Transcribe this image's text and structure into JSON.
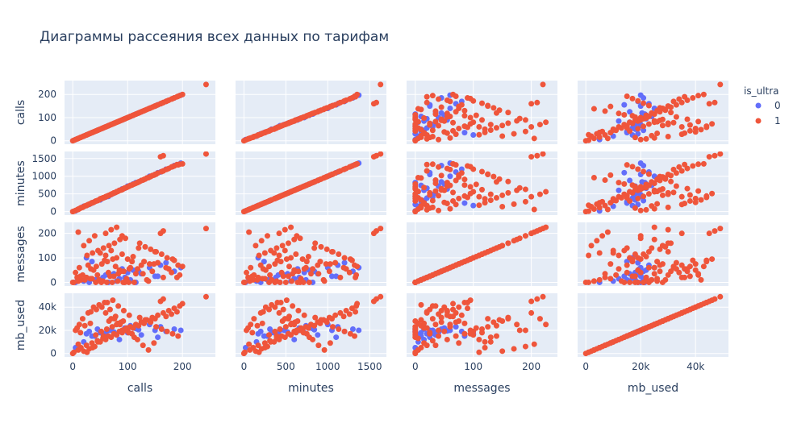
{
  "chart_data": {
    "type": "scatter",
    "subtype": "scatter_matrix",
    "title": "Диаграммы рассеяния всех данных по тарифам",
    "dimensions": [
      "calls",
      "minutes",
      "messages",
      "mb_used"
    ],
    "axes": {
      "calls": {
        "range": [
          -15,
          260
        ],
        "ticks": [
          0,
          100,
          200
        ],
        "tick_labels": [
          "0",
          "100",
          "200"
        ]
      },
      "minutes": {
        "range": [
          -100,
          1700
        ],
        "ticks": [
          0,
          500,
          1000,
          1500
        ],
        "tick_labels": [
          "0",
          "500",
          "1000",
          "1500"
        ]
      },
      "messages": {
        "range": [
          -15,
          245
        ],
        "ticks": [
          0,
          100,
          200
        ],
        "tick_labels": [
          "0",
          "100",
          "200"
        ]
      },
      "mb_used": {
        "range": [
          -3000,
          52000
        ],
        "ticks": [
          0,
          20000,
          40000
        ],
        "tick_labels": [
          "0",
          "20k",
          "40k"
        ]
      }
    },
    "legend": {
      "title": "is_ultra",
      "placement": "top-right",
      "entries": [
        {
          "name": "0",
          "color": "#636efa"
        },
        {
          "name": "1",
          "color": "#ef553b"
        }
      ]
    },
    "grid": true,
    "background_color": "#e5ecf6",
    "series": [
      {
        "name": "0",
        "color": "#636efa",
        "points": [
          [
            5,
            20,
            0,
            5000
          ],
          [
            20,
            150,
            5,
            10000
          ],
          [
            40,
            280,
            10,
            15000
          ],
          [
            55,
            380,
            20,
            17000
          ],
          [
            70,
            480,
            30,
            20000
          ],
          [
            85,
            600,
            15,
            12000
          ],
          [
            100,
            720,
            40,
            18000
          ],
          [
            110,
            780,
            50,
            22000
          ],
          [
            125,
            880,
            35,
            16000
          ],
          [
            140,
            1000,
            60,
            25000
          ],
          [
            155,
            1100,
            25,
            14000
          ],
          [
            170,
            1200,
            80,
            19000
          ],
          [
            185,
            1300,
            45,
            21000
          ],
          [
            197,
            1370,
            60,
            20000
          ],
          [
            50,
            330,
            10,
            18000
          ],
          [
            65,
            430,
            0,
            20000
          ],
          [
            80,
            560,
            5,
            16000
          ],
          [
            95,
            660,
            20,
            22000
          ],
          [
            30,
            200,
            0,
            19000
          ],
          [
            60,
            410,
            30,
            17500
          ],
          [
            90,
            640,
            55,
            19500
          ],
          [
            120,
            840,
            45,
            20500
          ],
          [
            45,
            310,
            15,
            21000
          ],
          [
            75,
            520,
            35,
            18500
          ],
          [
            150,
            1050,
            25,
            20000
          ],
          [
            160,
            1120,
            70,
            23000
          ],
          [
            35,
            240,
            85,
            15000
          ],
          [
            25,
            170,
            100,
            17000
          ],
          [
            105,
            740,
            10,
            24000
          ],
          [
            115,
            820,
            0,
            21500
          ]
        ]
      },
      {
        "name": "1",
        "color": "#ef553b",
        "points": [
          [
            0,
            0,
            0,
            0
          ],
          [
            2,
            10,
            0,
            1000
          ],
          [
            10,
            70,
            5,
            3000
          ],
          [
            15,
            110,
            10,
            5000
          ],
          [
            25,
            170,
            20,
            7000
          ],
          [
            35,
            250,
            15,
            9000
          ],
          [
            45,
            310,
            30,
            11000
          ],
          [
            55,
            390,
            5,
            13000
          ],
          [
            65,
            450,
            40,
            15000
          ],
          [
            75,
            530,
            25,
            17000
          ],
          [
            85,
            600,
            50,
            19000
          ],
          [
            95,
            670,
            0,
            21000
          ],
          [
            105,
            740,
            60,
            23000
          ],
          [
            115,
            800,
            35,
            25000
          ],
          [
            125,
            880,
            70,
            27000
          ],
          [
            135,
            950,
            10,
            29000
          ],
          [
            145,
            1020,
            45,
            31000
          ],
          [
            155,
            1090,
            80,
            33000
          ],
          [
            165,
            1150,
            20,
            35000
          ],
          [
            175,
            1220,
            55,
            37000
          ],
          [
            185,
            1290,
            90,
            39000
          ],
          [
            195,
            1340,
            30,
            41000
          ],
          [
            200,
            1350,
            65,
            43000
          ],
          [
            160,
            1550,
            200,
            45000
          ],
          [
            165,
            1580,
            210,
            47000
          ],
          [
            243,
            1630,
            220,
            49000
          ],
          [
            20,
            140,
            150,
            2000
          ],
          [
            30,
            210,
            170,
            4000
          ],
          [
            40,
            280,
            190,
            6000
          ],
          [
            10,
            60,
            205,
            8000
          ],
          [
            50,
            360,
            120,
            10000
          ],
          [
            60,
            420,
            110,
            12000
          ],
          [
            70,
            490,
            130,
            14000
          ],
          [
            80,
            560,
            100,
            16000
          ],
          [
            90,
            620,
            115,
            18000
          ],
          [
            100,
            700,
            95,
            20000
          ],
          [
            110,
            770,
            105,
            22000
          ],
          [
            120,
            840,
            140,
            24000
          ],
          [
            130,
            910,
            85,
            26000
          ],
          [
            140,
            980,
            75,
            28000
          ],
          [
            150,
            1050,
            125,
            30000
          ],
          [
            170,
            1190,
            60,
            32000
          ],
          [
            180,
            1260,
            40,
            34000
          ],
          [
            190,
            1330,
            20,
            36000
          ],
          [
            5,
            30,
            40,
            20000
          ],
          [
            12,
            80,
            60,
            25000
          ],
          [
            18,
            120,
            30,
            30000
          ],
          [
            28,
            200,
            70,
            35000
          ],
          [
            38,
            260,
            50,
            40000
          ],
          [
            48,
            330,
            10,
            42000
          ],
          [
            58,
            400,
            90,
            44000
          ],
          [
            68,
            470,
            25,
            38000
          ],
          [
            78,
            540,
            65,
            32000
          ],
          [
            88,
            610,
            45,
            27000
          ],
          [
            98,
            680,
            15,
            22000
          ],
          [
            108,
            750,
            85,
            17000
          ],
          [
            118,
            820,
            55,
            12000
          ],
          [
            128,
            890,
            35,
            7000
          ],
          [
            138,
            960,
            5,
            3000
          ],
          [
            148,
            1030,
            75,
            9000
          ],
          [
            42,
            300,
            0,
            16000
          ],
          [
            52,
            370,
            0,
            19000
          ],
          [
            62,
            430,
            0,
            21000
          ],
          [
            72,
            500,
            0,
            23000
          ],
          [
            82,
            570,
            5,
            26000
          ],
          [
            92,
            640,
            0,
            28000
          ],
          [
            102,
            710,
            0,
            18000
          ],
          [
            112,
            780,
            0,
            14000
          ],
          [
            22,
            160,
            10,
            24000
          ],
          [
            32,
            220,
            15,
            26000
          ],
          [
            8,
            50,
            20,
            22000
          ],
          [
            14,
            100,
            25,
            18000
          ],
          [
            66,
            460,
            150,
            28000
          ],
          [
            76,
            530,
            160,
            30000
          ],
          [
            86,
            600,
            175,
            25000
          ],
          [
            96,
            670,
            180,
            20000
          ],
          [
            56,
            390,
            140,
            15000
          ],
          [
            46,
            320,
            130,
            10000
          ],
          [
            36,
            250,
            120,
            5000
          ],
          [
            26,
            180,
            110,
            1000
          ],
          [
            122,
            850,
            160,
            31000
          ],
          [
            132,
            920,
            145,
            29000
          ],
          [
            142,
            990,
            135,
            27000
          ],
          [
            152,
            1060,
            125,
            23000
          ],
          [
            162,
            1130,
            115,
            21000
          ],
          [
            172,
            1200,
            100,
            19000
          ],
          [
            182,
            1270,
            95,
            17000
          ],
          [
            192,
            1320,
            70,
            15000
          ],
          [
            60,
            420,
            200,
            35000
          ],
          [
            70,
            490,
            215,
            30000
          ],
          [
            80,
            560,
            225,
            25000
          ],
          [
            90,
            630,
            190,
            20000
          ],
          [
            33,
            230,
            55,
            36000
          ],
          [
            43,
            300,
            65,
            38000
          ],
          [
            53,
            370,
            75,
            40000
          ],
          [
            63,
            440,
            85,
            44000
          ],
          [
            73,
            510,
            95,
            46000
          ],
          [
            83,
            580,
            35,
            41000
          ],
          [
            93,
            650,
            45,
            37000
          ],
          [
            103,
            720,
            55,
            33000
          ]
        ]
      }
    ]
  }
}
